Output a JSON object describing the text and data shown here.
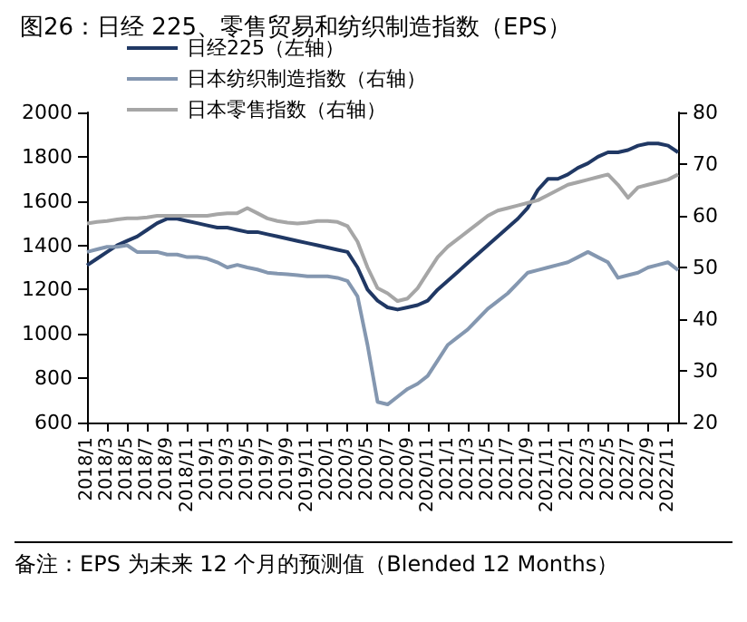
{
  "chart_data": {
    "type": "line",
    "title": "图26：日经 225、零售贸易和纺织制造指数（EPS）",
    "categories": [
      "2018/1",
      null,
      "2018/3",
      null,
      "2018/5",
      null,
      "2018/7",
      null,
      "2018/9",
      null,
      "2018/11",
      null,
      "2019/1",
      null,
      "2019/3",
      null,
      "2019/5",
      null,
      "2019/7",
      null,
      "2019/9",
      null,
      "2019/11",
      null,
      "2020/1",
      null,
      "2020/3",
      null,
      "2020/5",
      null,
      "2020/7",
      null,
      "2020/9",
      null,
      "2020/11",
      null,
      "2021/1",
      null,
      "2021/3",
      null,
      "2021/5",
      null,
      "2021/7",
      null,
      "2021/9",
      null,
      "2021/11",
      null,
      "2022/1",
      null,
      "2022/3",
      null,
      "2022/5",
      null,
      "2022/7",
      null,
      "2022/9",
      null,
      "2022/11",
      null
    ],
    "series": [
      {
        "name": "日经225（左轴）",
        "color": "#203864",
        "values": [
          1310,
          1340,
          1370,
          1400,
          1420,
          1440,
          1470,
          1500,
          1520,
          1520,
          1510,
          1500,
          1490,
          1480,
          1480,
          1470,
          1460,
          1460,
          1450,
          1440,
          1430,
          1420,
          1410,
          1400,
          1390,
          1380,
          1370,
          1300,
          1200,
          1150,
          1120,
          1110,
          1120,
          1130,
          1150,
          1200,
          1240,
          1280,
          1320,
          1360,
          1400,
          1440,
          1480,
          1520,
          1570,
          1650,
          1700,
          1700,
          1720,
          1750,
          1770,
          1800,
          1820,
          1820,
          1830,
          1850,
          1860,
          1860,
          1850,
          1820
        ]
      },
      {
        "name": "日本纺织制造指数（右轴）",
        "color": "#8497b0",
        "axis": "y2",
        "values": [
          53,
          53.5,
          54,
          54,
          54.3,
          53,
          53,
          53,
          52.5,
          52.5,
          52,
          52,
          51.7,
          51,
          50,
          50.5,
          50,
          49.6,
          49,
          48.8,
          48.7,
          48.5,
          48.3,
          48.3,
          48.3,
          48,
          47.4,
          44.4,
          35,
          24,
          23.5,
          25,
          26.5,
          27.5,
          29,
          32,
          35,
          36.5,
          38,
          40,
          42,
          43.5,
          45,
          47,
          49,
          49.5,
          50,
          50.5,
          51,
          52,
          53,
          52,
          51,
          48,
          48.5,
          49,
          50,
          50.5,
          51,
          49.5
        ]
      },
      {
        "name": "日本零售指数（右轴）",
        "color": "#a6a6a6",
        "axis": "y2",
        "values": [
          58.5,
          58.8,
          59,
          59.3,
          59.5,
          59.5,
          59.7,
          60,
          60,
          60,
          60,
          60,
          60,
          60.3,
          60.5,
          60.5,
          61.5,
          60.5,
          59.5,
          59,
          58.7,
          58.5,
          58.7,
          59,
          59,
          58.8,
          58,
          55,
          50,
          46,
          45,
          43.5,
          44,
          46,
          49,
          52,
          54,
          55.5,
          57,
          58.5,
          60,
          61,
          61.5,
          62,
          62.5,
          63,
          64,
          65,
          66,
          66.5,
          67,
          67.5,
          68,
          66,
          63.5,
          65.5,
          66,
          66.5,
          67,
          68
        ]
      }
    ],
    "ylim": [
      600,
      2000
    ],
    "yticks": [
      600,
      800,
      1000,
      1200,
      1400,
      1600,
      1800,
      2000
    ],
    "y2lim": [
      20,
      80
    ],
    "y2ticks": [
      20,
      30,
      40,
      50,
      60,
      70,
      80
    ],
    "grid": false,
    "legend": "top",
    "marker": "none",
    "line_style": "solid",
    "annotations": [
      "备注：EPS 为未来 12 个月的预测值（Blended 12 Months）"
    ]
  }
}
